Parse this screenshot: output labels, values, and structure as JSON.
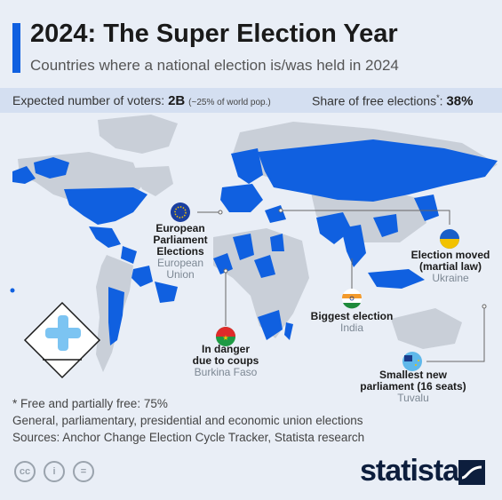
{
  "title": "2024: The Super Election Year",
  "subtitle": "Countries where a national election is/was held in 2024",
  "stats": {
    "voters_label": "Expected number of voters:",
    "voters_value": "2B",
    "voters_note": "(~25% of world pop.)",
    "free_label": "Share of free elections",
    "free_marker": "*",
    "free_colon": ":",
    "free_value": "38%"
  },
  "callouts": {
    "eu": {
      "label_1": "European",
      "label_2": "Parliament",
      "label_3": "Elections",
      "country_1": "European",
      "country_2": "Union"
    },
    "ukraine": {
      "label_1": "Election moved",
      "label_2": "(martial law)",
      "country": "Ukraine"
    },
    "india": {
      "label": "Biggest election",
      "country": "India"
    },
    "burkina": {
      "label_1": "In danger",
      "label_2": "due to coups",
      "country": "Burkina Faso"
    },
    "tuvalu": {
      "label_1": "Smallest new",
      "label_2": "parliament (16 seats)",
      "country": "Tuvalu"
    }
  },
  "footer": {
    "note": "* Free and partially free: 75%",
    "types": "General, parliamentary, presidential and economic union elections",
    "sources": "Sources: Anchor Change Election Cycle Tracker, Statista research"
  },
  "brand": "statista",
  "license_icons": {
    "cc": "cc",
    "by": "i",
    "nd": "="
  },
  "colors": {
    "election": "#1060e0",
    "no_election": "#c9cfd8",
    "background": "#e9eef6",
    "band": "#d4dff1",
    "brand": "#0d1e3d"
  }
}
